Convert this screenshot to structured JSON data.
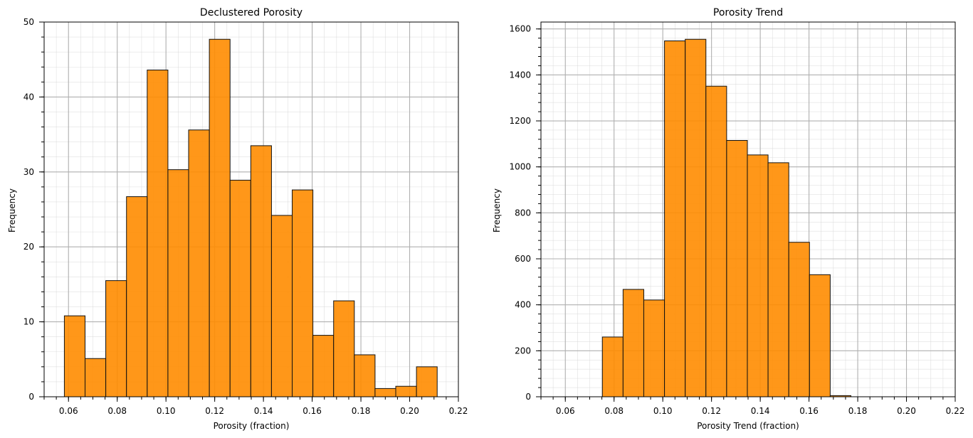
{
  "chart_data": [
    {
      "type": "bar",
      "title": "Declustered Porosity",
      "xlabel": "Porosity (fraction)",
      "ylabel": "Frequency",
      "xlim": [
        0.05,
        0.22
      ],
      "ylim": [
        0,
        50
      ],
      "xticks": [
        "0.06",
        "0.08",
        "0.10",
        "0.12",
        "0.14",
        "0.16",
        "0.18",
        "0.20",
        "0.22"
      ],
      "yticks": [
        "0",
        "10",
        "20",
        "30",
        "40",
        "50"
      ],
      "grid": true,
      "bar_color": "#ff8c00",
      "bin_edges": [
        0.0583,
        0.0668,
        0.0753,
        0.0838,
        0.0923,
        0.1008,
        0.1093,
        0.1178,
        0.1263,
        0.1348,
        0.1433,
        0.1518,
        0.1603,
        0.1688,
        0.1773,
        0.1858,
        0.1943,
        0.2028,
        0.2113
      ],
      "values": [
        10.8,
        5.1,
        15.5,
        26.7,
        43.6,
        30.3,
        35.6,
        47.7,
        28.9,
        33.5,
        24.2,
        27.6,
        8.2,
        12.8,
        5.6,
        1.1,
        1.4,
        4.0
      ]
    },
    {
      "type": "bar",
      "title": "Porosity Trend",
      "xlabel": "Porosity Trend (fraction)",
      "ylabel": "Frequency",
      "xlim": [
        0.05,
        0.22
      ],
      "ylim": [
        0,
        1630
      ],
      "xticks": [
        "0.06",
        "0.08",
        "0.10",
        "0.12",
        "0.14",
        "0.16",
        "0.18",
        "0.20",
        "0.22"
      ],
      "yticks": [
        "0",
        "200",
        "400",
        "600",
        "800",
        "1000",
        "1200",
        "1400",
        "1600"
      ],
      "grid": true,
      "bar_color": "#ff8c00",
      "bin_edges": [
        0.0752,
        0.0837,
        0.0922,
        0.1007,
        0.1092,
        0.1177,
        0.1262,
        0.1347,
        0.1432,
        0.1517,
        0.1602,
        0.1687,
        0.1772
      ],
      "values": [
        260,
        467,
        421,
        1548,
        1555,
        1351,
        1115,
        1052,
        1018,
        672,
        531,
        5
      ]
    }
  ]
}
